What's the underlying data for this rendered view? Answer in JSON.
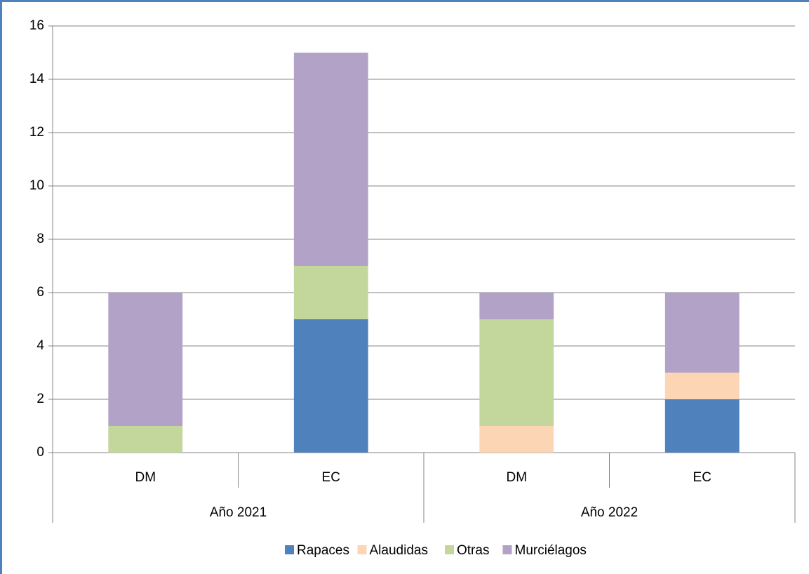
{
  "chart_data": {
    "type": "stacked_bar",
    "groups": [
      {
        "name": "Año 2021",
        "categories": [
          "DM",
          "EC"
        ]
      },
      {
        "name": "Año 2022",
        "categories": [
          "DM",
          "EC"
        ]
      }
    ],
    "series": [
      {
        "name": "Rapaces",
        "color": "#4f81bd",
        "values": [
          0,
          5,
          0,
          2
        ]
      },
      {
        "name": "Alaudidas",
        "color": "#fcd5b5",
        "values": [
          0,
          0,
          1,
          1
        ]
      },
      {
        "name": "Otras",
        "color": "#c3d69b",
        "values": [
          1,
          2,
          4,
          0
        ]
      },
      {
        "name": "Murciélagos",
        "color": "#b2a2c7",
        "values": [
          5,
          8,
          1,
          3
        ]
      }
    ],
    "ylim": [
      0,
      16
    ],
    "yticks": [
      0,
      2,
      4,
      6,
      8,
      10,
      12,
      14,
      16
    ],
    "grid": true,
    "legend": "bottom"
  }
}
